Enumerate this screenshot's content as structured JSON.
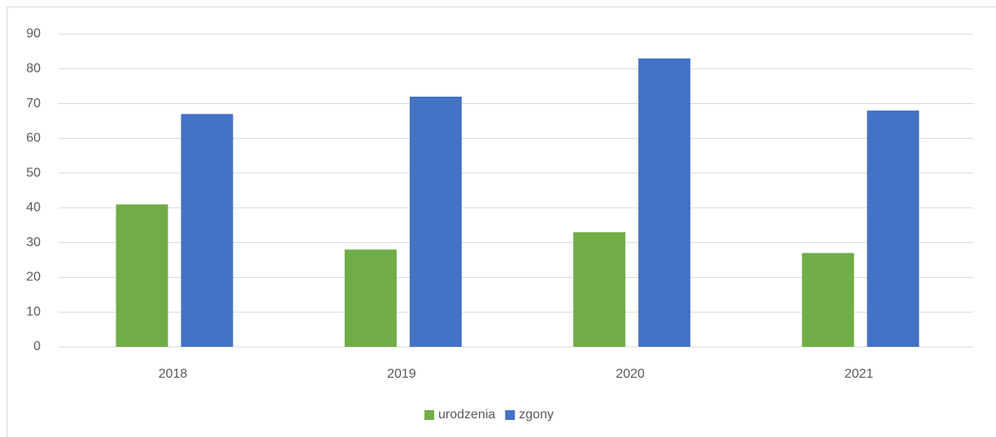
{
  "chart_data": {
    "type": "bar",
    "categories": [
      "2018",
      "2019",
      "2020",
      "2021"
    ],
    "series": [
      {
        "name": "urodzenia",
        "color": "#70ad47",
        "values": [
          41,
          28,
          33,
          27
        ]
      },
      {
        "name": "zgony",
        "color": "#4472c4",
        "values": [
          67,
          72,
          83,
          68
        ]
      }
    ],
    "ylim": [
      0,
      90
    ],
    "yticks": [
      0,
      10,
      20,
      30,
      40,
      50,
      60,
      70,
      80,
      90
    ],
    "grid": true,
    "legend": "bottom"
  }
}
